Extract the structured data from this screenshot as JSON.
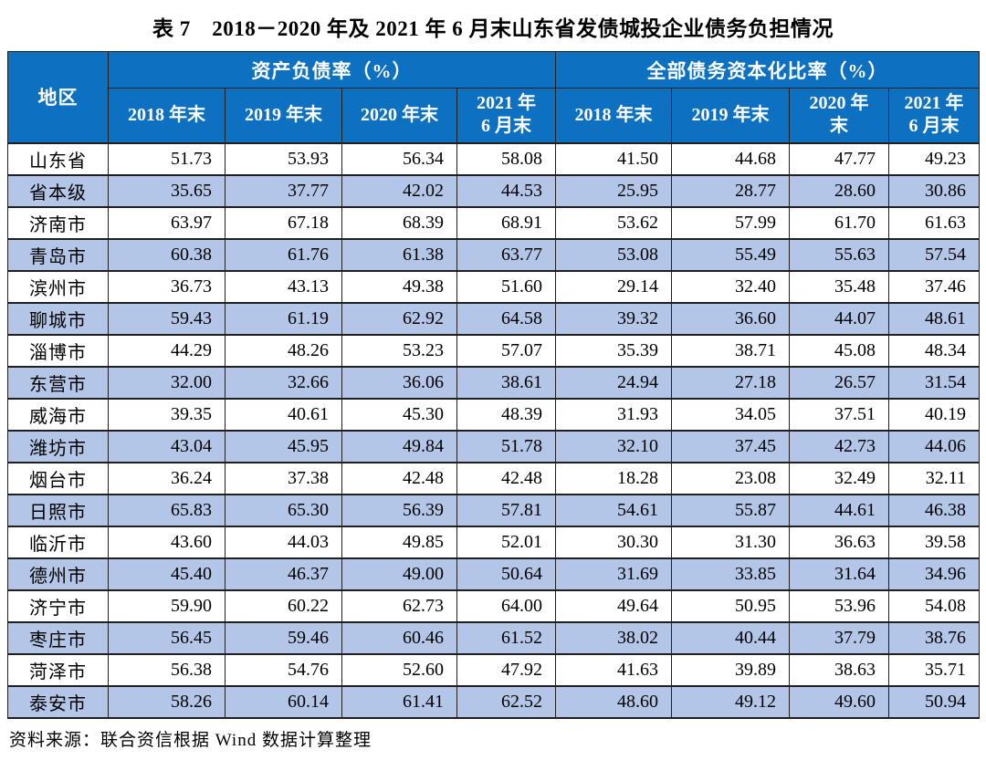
{
  "title": "表 7　2018－2020 年及 2021 年 6 月末山东省发债城投企业债务负担情况",
  "source_note": "资料来源：联合资信根据 Wind 数据计算整理",
  "colors": {
    "header_bg": "#0d70c1",
    "header_text": "#ffffff",
    "stripe_bg": "#b4c6e7",
    "border": "#1f1f1f"
  },
  "table": {
    "region_header": "地区",
    "groups": [
      {
        "label": "资产负债率（%）",
        "cols": [
          "2018 年末",
          "2019 年末",
          "2020 年末",
          "2021 年\n6 月末"
        ]
      },
      {
        "label": "全部债务资本化比率（%）",
        "cols": [
          "2018 年末",
          "2019 年末",
          "2020 年\n末",
          "2021 年\n6 月末"
        ]
      }
    ],
    "rows": [
      {
        "region": "山东省",
        "values": [
          "51.73",
          "53.93",
          "56.34",
          "58.08",
          "41.50",
          "44.68",
          "47.77",
          "49.23"
        ]
      },
      {
        "region": "省本级",
        "values": [
          "35.65",
          "37.77",
          "42.02",
          "44.53",
          "25.95",
          "28.77",
          "28.60",
          "30.86"
        ]
      },
      {
        "region": "济南市",
        "values": [
          "63.97",
          "67.18",
          "68.39",
          "68.91",
          "53.62",
          "57.99",
          "61.70",
          "61.63"
        ]
      },
      {
        "region": "青岛市",
        "values": [
          "60.38",
          "61.76",
          "61.38",
          "63.77",
          "53.08",
          "55.49",
          "55.63",
          "57.54"
        ]
      },
      {
        "region": "滨州市",
        "values": [
          "36.73",
          "43.13",
          "49.38",
          "51.60",
          "29.14",
          "32.40",
          "35.48",
          "37.46"
        ]
      },
      {
        "region": "聊城市",
        "values": [
          "59.43",
          "61.19",
          "62.92",
          "64.58",
          "39.32",
          "36.60",
          "44.07",
          "48.61"
        ]
      },
      {
        "region": "淄博市",
        "values": [
          "44.29",
          "48.26",
          "53.23",
          "57.07",
          "35.39",
          "38.71",
          "45.08",
          "48.34"
        ]
      },
      {
        "region": "东营市",
        "values": [
          "32.00",
          "32.66",
          "36.06",
          "38.61",
          "24.94",
          "27.18",
          "26.57",
          "31.54"
        ]
      },
      {
        "region": "威海市",
        "values": [
          "39.35",
          "40.61",
          "45.30",
          "48.39",
          "31.93",
          "34.05",
          "37.51",
          "40.19"
        ]
      },
      {
        "region": "潍坊市",
        "values": [
          "43.04",
          "45.95",
          "49.84",
          "51.78",
          "32.10",
          "37.45",
          "42.73",
          "44.06"
        ]
      },
      {
        "region": "烟台市",
        "values": [
          "36.24",
          "37.38",
          "42.48",
          "42.48",
          "18.28",
          "23.08",
          "32.49",
          "32.11"
        ]
      },
      {
        "region": "日照市",
        "values": [
          "65.83",
          "65.30",
          "56.39",
          "57.81",
          "54.61",
          "55.87",
          "44.61",
          "46.38"
        ]
      },
      {
        "region": "临沂市",
        "values": [
          "43.60",
          "44.03",
          "49.85",
          "52.01",
          "30.30",
          "31.30",
          "36.63",
          "39.58"
        ]
      },
      {
        "region": "德州市",
        "values": [
          "45.40",
          "46.37",
          "49.00",
          "50.64",
          "31.69",
          "33.85",
          "31.64",
          "34.96"
        ]
      },
      {
        "region": "济宁市",
        "values": [
          "59.90",
          "60.22",
          "62.73",
          "64.00",
          "49.64",
          "50.95",
          "53.96",
          "54.08"
        ]
      },
      {
        "region": "枣庄市",
        "values": [
          "56.45",
          "59.46",
          "60.46",
          "61.52",
          "38.02",
          "40.44",
          "37.79",
          "38.76"
        ]
      },
      {
        "region": "菏泽市",
        "values": [
          "56.38",
          "54.76",
          "52.60",
          "47.92",
          "41.63",
          "39.89",
          "38.63",
          "35.71"
        ]
      },
      {
        "region": "泰安市",
        "values": [
          "58.26",
          "60.14",
          "61.41",
          "62.52",
          "48.60",
          "49.12",
          "49.60",
          "50.94"
        ]
      }
    ]
  }
}
